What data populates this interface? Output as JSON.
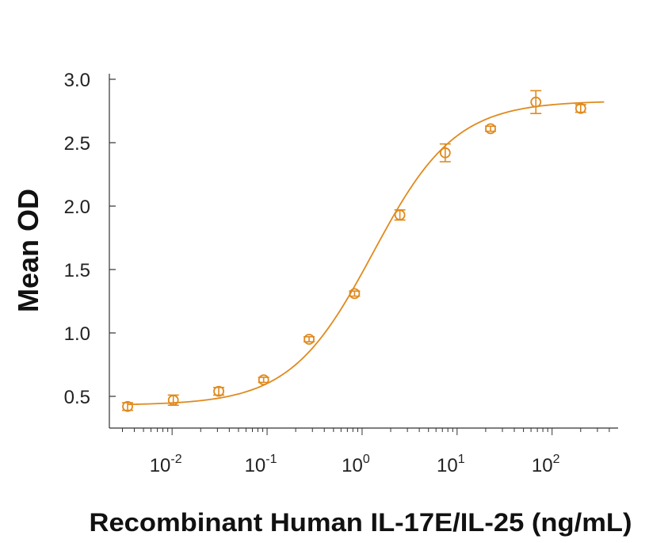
{
  "chart_data": {
    "type": "scatter",
    "xlabel": "Recombinant Human IL-17E/IL-25 (ng/mL)",
    "ylabel": "Mean OD",
    "x_scale": "log",
    "xlim": [
      0.0025,
      450
    ],
    "ylim": [
      0.3,
      3.0
    ],
    "y_ticks": [
      {
        "value": 0.5,
        "label": "0.5"
      },
      {
        "value": 1.0,
        "label": "1.0"
      },
      {
        "value": 1.5,
        "label": "1.5"
      },
      {
        "value": 2.0,
        "label": "2.0"
      },
      {
        "value": 2.5,
        "label": "2.5"
      },
      {
        "value": 3.0,
        "label": "3.0"
      }
    ],
    "x_ticks": [
      {
        "value": 0.01,
        "base": "10",
        "exp": "-2"
      },
      {
        "value": 0.1,
        "base": "10",
        "exp": "-1"
      },
      {
        "value": 1,
        "base": "10",
        "exp": "0"
      },
      {
        "value": 10,
        "base": "10",
        "exp": "1"
      },
      {
        "value": 100,
        "base": "10",
        "exp": "2"
      }
    ],
    "series": [
      {
        "color": "#E08A1E",
        "points": [
          {
            "x": 0.0034,
            "y": 0.42,
            "err": 0.03
          },
          {
            "x": 0.0103,
            "y": 0.47,
            "err": 0.04
          },
          {
            "x": 0.031,
            "y": 0.54,
            "err": 0.03
          },
          {
            "x": 0.092,
            "y": 0.63,
            "err": 0.02
          },
          {
            "x": 0.277,
            "y": 0.95,
            "err": 0.02
          },
          {
            "x": 0.833,
            "y": 1.31,
            "err": 0.02
          },
          {
            "x": 2.5,
            "y": 1.93,
            "err": 0.04
          },
          {
            "x": 7.5,
            "y": 2.42,
            "err": 0.07
          },
          {
            "x": 22.5,
            "y": 2.61,
            "err": 0.02
          },
          {
            "x": 67.5,
            "y": 2.82,
            "err": 0.09
          },
          {
            "x": 200,
            "y": 2.77,
            "err": 0.03
          }
        ],
        "fit": {
          "model": "4PL",
          "bottom": 0.43,
          "top": 2.83,
          "ec50": 1.3,
          "hill": 1.0
        }
      }
    ]
  }
}
